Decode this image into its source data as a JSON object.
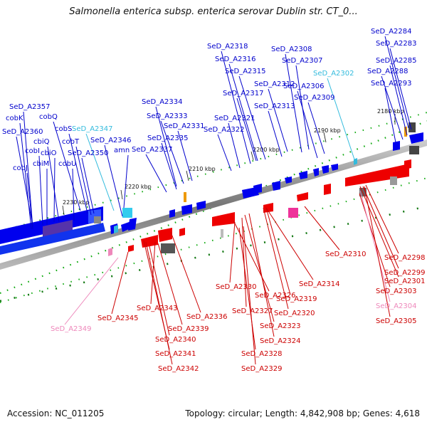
{
  "header": {
    "title": "Salmonella enterica subsp. enterica serovar Dublin str. CT_0..."
  },
  "footer": {
    "accession": "Accession: NC_011205",
    "summary": "Topology: circular; Length: 4,842,908 bp; Genes: 4,618"
  },
  "colors": {
    "forward_gene": "#0000ee",
    "reverse_gene": "#ee0000",
    "rna_forward": "#33bbdd",
    "rna_reverse": "#ee88bb",
    "backbone": "#888888",
    "tick_mark": "#117711"
  },
  "ticks": [
    "2180 kbp",
    "2190 kbp",
    "2200 kbp",
    "2210 kbp",
    "2220 kbp",
    "2230 kbp"
  ],
  "upper_labels": [
    {
      "text": "SeD_A2284",
      "color": "#0000cc"
    },
    {
      "text": "SeD_A2283",
      "color": "#0000cc"
    },
    {
      "text": "SeD_A2285",
      "color": "#0000cc"
    },
    {
      "text": "SeD_A2288",
      "color": "#0000cc"
    },
    {
      "text": "SeD_A2293",
      "color": "#0000cc"
    },
    {
      "text": "SeD_A2308",
      "color": "#0000cc"
    },
    {
      "text": "SeD_A2307",
      "color": "#0000cc"
    },
    {
      "text": "SeD_A2302",
      "color": "#33bbdd"
    },
    {
      "text": "SeD_A2306",
      "color": "#0000cc"
    },
    {
      "text": "SeD_A2309",
      "color": "#0000cc"
    },
    {
      "text": "SeD_A2318",
      "color": "#0000cc"
    },
    {
      "text": "SeD_A2316",
      "color": "#0000cc"
    },
    {
      "text": "SeD_A2315",
      "color": "#0000cc"
    },
    {
      "text": "SeD_A2312",
      "color": "#0000cc"
    },
    {
      "text": "SeD_A2317",
      "color": "#0000cc"
    },
    {
      "text": "SeD_A2313",
      "color": "#0000cc"
    },
    {
      "text": "SeD_A2321",
      "color": "#0000cc"
    },
    {
      "text": "SeD_A2322",
      "color": "#0000cc"
    },
    {
      "text": "SeD_A2334",
      "color": "#0000cc"
    },
    {
      "text": "SeD_A2333",
      "color": "#0000cc"
    },
    {
      "text": "SeD_A2331",
      "color": "#0000cc"
    },
    {
      "text": "SeD_A2335",
      "color": "#0000cc"
    },
    {
      "text": "SeD_A2337",
      "color": "#0000cc"
    },
    {
      "text": "SeD_A2357",
      "color": "#0000cc"
    },
    {
      "text": "cobK",
      "color": "#0000cc"
    },
    {
      "text": "cobQ",
      "color": "#0000cc"
    },
    {
      "text": "SeD_A2360",
      "color": "#0000cc"
    },
    {
      "text": "cbiQ",
      "color": "#0000cc"
    },
    {
      "text": "cobS",
      "color": "#0000cc"
    },
    {
      "text": "SeD_A2347",
      "color": "#33bbdd"
    },
    {
      "text": "cobI",
      "color": "#0000cc"
    },
    {
      "text": "cobT",
      "color": "#0000cc"
    },
    {
      "text": "SeD_A2346",
      "color": "#0000cc"
    },
    {
      "text": "cbiO",
      "color": "#0000cc"
    },
    {
      "text": "SeD_A2350",
      "color": "#0000cc"
    },
    {
      "text": "amn",
      "color": "#0000cc"
    },
    {
      "text": "cbiM",
      "color": "#0000cc"
    },
    {
      "text": "cobU",
      "color": "#0000cc"
    },
    {
      "text": "cobJ",
      "color": "#0000cc"
    }
  ],
  "lower_labels": [
    {
      "text": "SeD_A2310",
      "color": "#cc0000"
    },
    {
      "text": "SeD_A2298",
      "color": "#cc0000"
    },
    {
      "text": "SeD_A2299",
      "color": "#cc0000"
    },
    {
      "text": "SeD_A2301",
      "color": "#cc0000"
    },
    {
      "text": "SeD_A2303",
      "color": "#cc0000"
    },
    {
      "text": "SeD_A2304",
      "color": "#ee88bb"
    },
    {
      "text": "SeD_A2305",
      "color": "#cc0000"
    },
    {
      "text": "SeD_A2314",
      "color": "#cc0000"
    },
    {
      "text": "SeD_A2330",
      "color": "#cc0000"
    },
    {
      "text": "SeD_A2326",
      "color": "#cc0000"
    },
    {
      "text": "SeD_A2319",
      "color": "#cc0000"
    },
    {
      "text": "SeD_A2327",
      "color": "#cc0000"
    },
    {
      "text": "SeD_A2320",
      "color": "#cc0000"
    },
    {
      "text": "SeD_A2323",
      "color": "#cc0000"
    },
    {
      "text": "SeD_A2324",
      "color": "#cc0000"
    },
    {
      "text": "SeD_A2328",
      "color": "#cc0000"
    },
    {
      "text": "SeD_A2329",
      "color": "#cc0000"
    },
    {
      "text": "SeD_A2343",
      "color": "#cc0000"
    },
    {
      "text": "SeD_A2345",
      "color": "#cc0000"
    },
    {
      "text": "SeD_A2336",
      "color": "#cc0000"
    },
    {
      "text": "SeD_A2339",
      "color": "#cc0000"
    },
    {
      "text": "SeD_A2340",
      "color": "#cc0000"
    },
    {
      "text": "SeD_A2341",
      "color": "#cc0000"
    },
    {
      "text": "SeD_A2342",
      "color": "#cc0000"
    },
    {
      "text": "SeD_A2349",
      "color": "#ee88bb"
    }
  ]
}
